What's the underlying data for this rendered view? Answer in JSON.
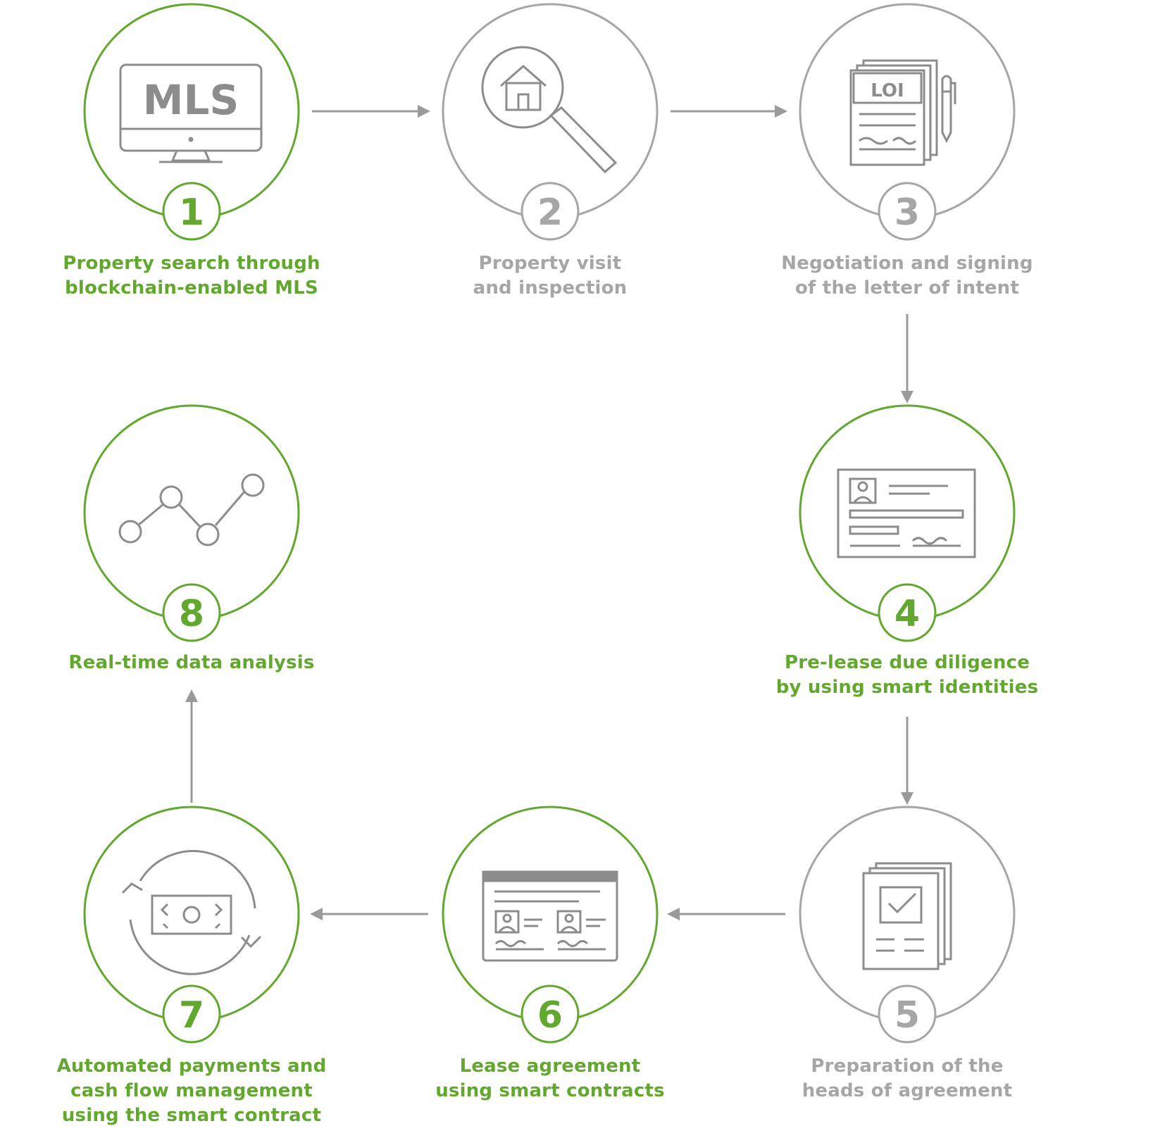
{
  "colors": {
    "accent_green": "#62a82e",
    "muted_gray": "#a6a6a6",
    "icon_gray": "#8c8c8c",
    "arrow_gray": "#9a9a9a"
  },
  "steps": [
    {
      "number": "1",
      "lines": [
        "Property search through",
        "blockchain-enabled MLS"
      ],
      "highlight": true,
      "icon": "mls-monitor-icon",
      "icon_text": "MLS"
    },
    {
      "number": "2",
      "lines": [
        "Property visit",
        "and inspection"
      ],
      "highlight": false,
      "icon": "house-magnifier-icon"
    },
    {
      "number": "3",
      "lines": [
        "Negotiation and signing",
        "of the letter of intent"
      ],
      "highlight": false,
      "icon": "loi-document-pen-icon",
      "icon_text": "LOI"
    },
    {
      "number": "4",
      "lines": [
        "Pre-lease due diligence",
        "by using smart identities"
      ],
      "highlight": true,
      "icon": "id-card-icon"
    },
    {
      "number": "5",
      "lines": [
        "Preparation of the",
        "heads of agreement"
      ],
      "highlight": false,
      "icon": "checked-documents-icon"
    },
    {
      "number": "6",
      "lines": [
        "Lease agreement",
        "using smart contracts"
      ],
      "highlight": true,
      "icon": "contract-window-icon"
    },
    {
      "number": "7",
      "lines": [
        "Automated payments and",
        "cash flow management",
        "using the smart contract"
      ],
      "highlight": true,
      "icon": "cash-cycle-icon"
    },
    {
      "number": "8",
      "lines": [
        "Real-time data analysis"
      ],
      "highlight": true,
      "icon": "line-chart-icon"
    }
  ]
}
